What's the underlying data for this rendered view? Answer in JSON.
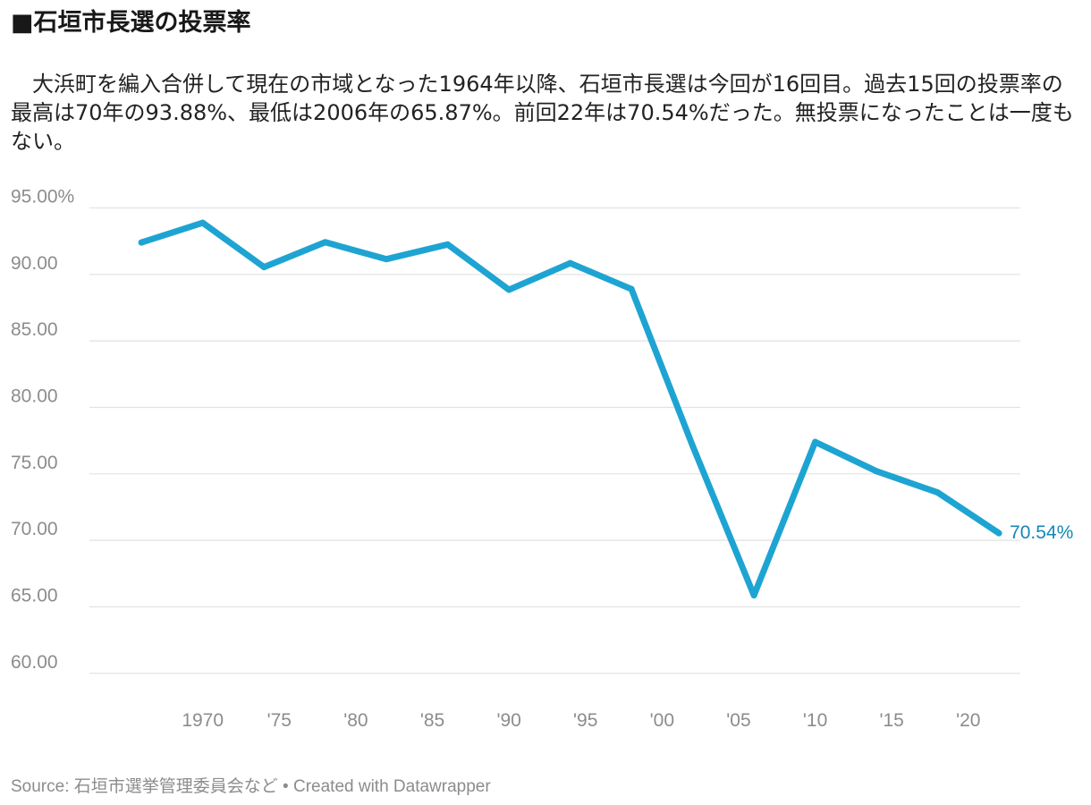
{
  "title": "■石垣市長選の投票率",
  "description": "　大浜町を編入合併して現在の市域となった1964年以降、石垣市長選は今回が16回目。過去15回の投票率の最高は70年の93.88%、最低は2006年の65.87%。前回22年は70.54%だった。無投票になったことは一度もない。",
  "footer": {
    "source": "Source: 石垣市選挙管理委員会など",
    "separator": "•",
    "credit": "Created with Datawrapper"
  },
  "colors": {
    "line": "#1ea4d2",
    "end_label": "#1487b7",
    "grid": "#e2e2e2",
    "tick": "#8c8c8c"
  },
  "chart_data": {
    "type": "line",
    "title": "■石垣市長選の投票率",
    "xlabel": "",
    "ylabel": "",
    "x": [
      1966,
      1970,
      1974,
      1978,
      1982,
      1986,
      1990,
      1994,
      1998,
      2002,
      2006,
      2010,
      2014,
      2018,
      2022
    ],
    "series": [
      {
        "name": "投票率",
        "values": [
          92.4,
          93.88,
          90.55,
          92.42,
          91.15,
          92.25,
          88.85,
          90.85,
          88.9,
          77.1,
          65.87,
          77.4,
          75.2,
          73.6,
          70.54
        ]
      }
    ],
    "xlim": [
      1962.6,
      2023.4
    ],
    "ylim": [
      57.5,
      95.3
    ],
    "y_ticks": [
      95,
      90,
      85,
      80,
      75,
      70,
      65,
      60
    ],
    "y_tick_labels": [
      "95.00%",
      "90.00",
      "85.00",
      "80.00",
      "75.00",
      "70.00",
      "65.00",
      "60.00"
    ],
    "x_ticks": [
      1970,
      1975,
      1980,
      1985,
      1990,
      1995,
      2000,
      2005,
      2010,
      2015,
      2020
    ],
    "x_tick_labels": [
      "1970",
      "'75",
      "'80",
      "'85",
      "'90",
      "'95",
      "'00",
      "'05",
      "'10",
      "'15",
      "'20"
    ],
    "end_label": "70.54%",
    "grid": true,
    "legend": "none"
  }
}
